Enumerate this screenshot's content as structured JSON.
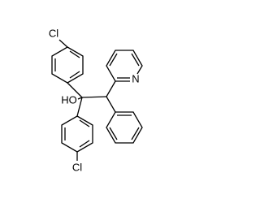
{
  "atoms": {
    "cl_top": "Cl",
    "cl_bottom": "Cl",
    "hydroxyl": "HO",
    "pyridine_n": "N"
  }
}
